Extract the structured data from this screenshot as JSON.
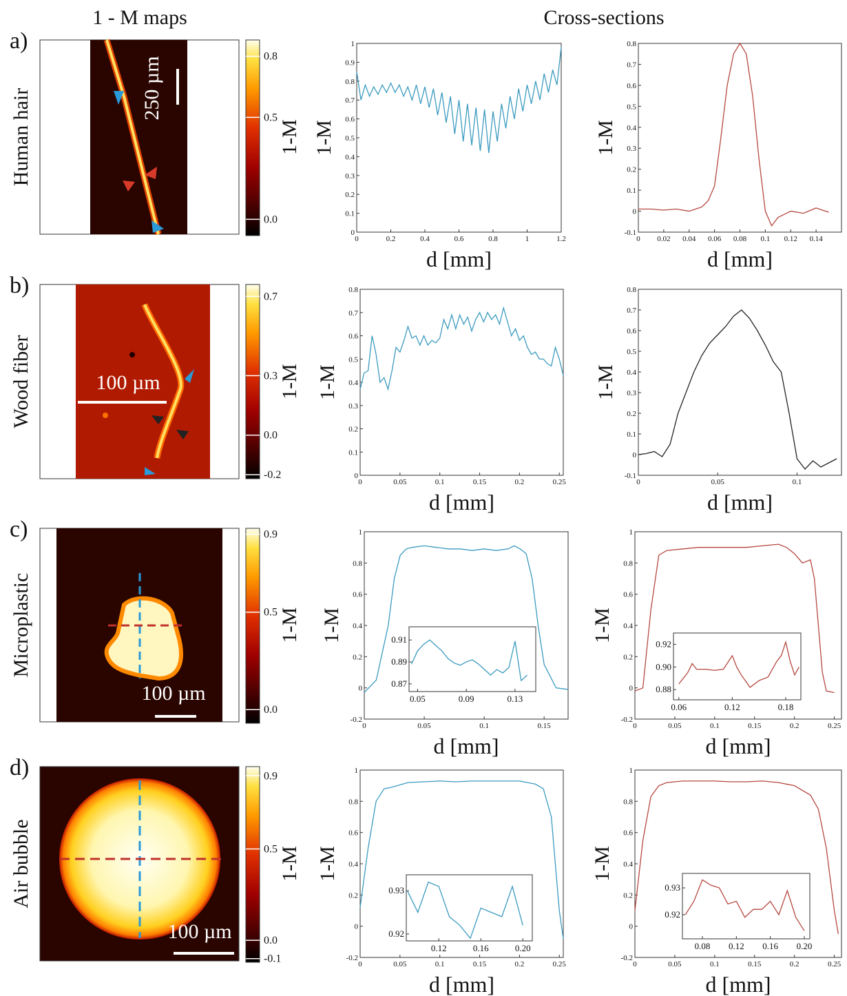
{
  "headers": {
    "maps": "1 - M maps",
    "cross_sections": "Cross-sections"
  },
  "panels": [
    {
      "letter": "a)",
      "name": "Human hair",
      "scale_label": "250 µm",
      "colorbar": {
        "label": "1-M",
        "clim": [
          -0.08,
          0.88
        ],
        "ticks": [
          0.8,
          0.5,
          {
            "value": 0,
            "label": "0.0"
          }
        ]
      }
    },
    {
      "letter": "b)",
      "name": "Wood fiber",
      "scale_label": "100 µm",
      "colorbar": {
        "label": "1-M",
        "clim": [
          -0.22,
          0.76
        ],
        "ticks": [
          0.7,
          0.3,
          {
            "value": 0,
            "label": "0.0"
          },
          -0.2
        ]
      }
    },
    {
      "letter": "c)",
      "name": "Microplastic",
      "scale_label": "100 µm",
      "colorbar": {
        "label": "1-M",
        "clim": [
          -0.07,
          0.93
        ],
        "ticks": [
          0.9,
          0.5,
          {
            "value": 0,
            "label": "0.0"
          }
        ]
      }
    },
    {
      "letter": "d)",
      "name": "Air bubble",
      "scale_label": "100 µm",
      "colorbar": {
        "label": "1-M",
        "clim": [
          -0.12,
          0.95
        ],
        "ticks": [
          0.9,
          0.5,
          {
            "value": 0,
            "label": "0.0"
          },
          -0.1
        ]
      }
    }
  ],
  "chart_data": [
    {
      "type": "line",
      "xlabel": "d [mm]",
      "ylabel": "1-M",
      "xlim": [
        0,
        1.2
      ],
      "ylim": [
        0,
        1
      ],
      "xticks": [
        0,
        0.2,
        0.4,
        0.6,
        0.8,
        1,
        1.2
      ],
      "yticks": [
        0,
        0.1,
        0.2,
        0.3,
        0.4,
        0.5,
        0.6,
        0.7,
        0.8,
        0.9,
        1
      ],
      "x": [
        0,
        0.025,
        0.05,
        0.075,
        0.1,
        0.125,
        0.15,
        0.175,
        0.2,
        0.225,
        0.25,
        0.275,
        0.3,
        0.325,
        0.35,
        0.375,
        0.4,
        0.425,
        0.45,
        0.475,
        0.5,
        0.525,
        0.55,
        0.575,
        0.6,
        0.625,
        0.65,
        0.675,
        0.7,
        0.725,
        0.75,
        0.775,
        0.8,
        0.825,
        0.85,
        0.875,
        0.9,
        0.925,
        0.95,
        0.975,
        1,
        1.025,
        1.05,
        1.075,
        1.1,
        1.125,
        1.15,
        1.175,
        1.2
      ],
      "series": [
        {
          "color": "#3a9abf",
          "values": [
            0.85,
            0.7,
            0.78,
            0.72,
            0.77,
            0.73,
            0.78,
            0.74,
            0.79,
            0.74,
            0.78,
            0.72,
            0.77,
            0.7,
            0.78,
            0.68,
            0.77,
            0.66,
            0.76,
            0.62,
            0.74,
            0.58,
            0.72,
            0.52,
            0.7,
            0.48,
            0.68,
            0.46,
            0.66,
            0.43,
            0.65,
            0.42,
            0.64,
            0.48,
            0.68,
            0.55,
            0.72,
            0.6,
            0.76,
            0.64,
            0.78,
            0.68,
            0.8,
            0.7,
            0.84,
            0.74,
            0.86,
            0.78,
            0.98
          ]
        }
      ]
    },
    {
      "type": "line",
      "xlabel": "d [mm]",
      "ylabel": "1-M",
      "xlim": [
        0,
        0.16
      ],
      "ylim": [
        -0.1,
        0.8
      ],
      "xticks": [
        0,
        0.02,
        0.04,
        0.06,
        0.08,
        0.1,
        0.12,
        0.14
      ],
      "yticks": [
        -0.1,
        0,
        0.1,
        0.2,
        0.3,
        0.4,
        0.5,
        0.6,
        0.7,
        0.8
      ],
      "x": [
        0,
        0.01,
        0.02,
        0.03,
        0.04,
        0.05,
        0.055,
        0.06,
        0.065,
        0.07,
        0.075,
        0.08,
        0.085,
        0.09,
        0.095,
        0.1,
        0.105,
        0.11,
        0.12,
        0.13,
        0.14,
        0.15
      ],
      "series": [
        {
          "color": "#b5473f",
          "values": [
            0.01,
            0.01,
            0.005,
            0.01,
            0,
            0.02,
            0.05,
            0.12,
            0.35,
            0.6,
            0.75,
            0.8,
            0.75,
            0.55,
            0.25,
            0,
            -0.07,
            -0.03,
            0,
            -0.01,
            0.015,
            -0.005
          ]
        }
      ]
    },
    {
      "type": "line",
      "xlabel": "d [mm]",
      "ylabel": "1-M",
      "xlim": [
        0,
        0.255
      ],
      "ylim": [
        0,
        0.8
      ],
      "xticks": [
        0,
        0.05,
        0.1,
        0.15,
        0.2,
        0.25
      ],
      "yticks": [
        0,
        0.1,
        0.2,
        0.3,
        0.4,
        0.5,
        0.6,
        0.7,
        0.8
      ],
      "x": [
        0,
        0.005,
        0.01,
        0.015,
        0.02,
        0.025,
        0.03,
        0.035,
        0.04,
        0.045,
        0.05,
        0.055,
        0.06,
        0.065,
        0.07,
        0.075,
        0.08,
        0.085,
        0.09,
        0.095,
        0.1,
        0.105,
        0.11,
        0.115,
        0.12,
        0.125,
        0.13,
        0.135,
        0.14,
        0.145,
        0.15,
        0.155,
        0.16,
        0.165,
        0.17,
        0.175,
        0.18,
        0.185,
        0.19,
        0.195,
        0.2,
        0.205,
        0.21,
        0.215,
        0.22,
        0.225,
        0.23,
        0.235,
        0.24,
        0.245,
        0.25,
        0.255
      ],
      "series": [
        {
          "color": "#3a9abf",
          "values": [
            0.37,
            0.44,
            0.45,
            0.6,
            0.52,
            0.4,
            0.42,
            0.37,
            0.45,
            0.55,
            0.53,
            0.58,
            0.64,
            0.59,
            0.6,
            0.56,
            0.6,
            0.56,
            0.58,
            0.57,
            0.59,
            0.67,
            0.63,
            0.69,
            0.63,
            0.69,
            0.65,
            0.68,
            0.62,
            0.67,
            0.7,
            0.66,
            0.7,
            0.67,
            0.69,
            0.65,
            0.72,
            0.66,
            0.6,
            0.63,
            0.58,
            0.6,
            0.55,
            0.52,
            0.53,
            0.5,
            0.5,
            0.48,
            0.47,
            0.55,
            0.5,
            0.43
          ]
        }
      ]
    },
    {
      "type": "line",
      "xlabel": "d [mm]",
      "ylabel": "1-M",
      "xlim": [
        0,
        0.128
      ],
      "ylim": [
        -0.1,
        0.8
      ],
      "xticks": [
        0,
        0.05,
        0.1
      ],
      "yticks": [
        -0.1,
        0,
        0.1,
        0.2,
        0.3,
        0.4,
        0.5,
        0.6,
        0.7,
        0.8
      ],
      "x": [
        0,
        0.005,
        0.01,
        0.015,
        0.02,
        0.025,
        0.03,
        0.035,
        0.04,
        0.045,
        0.05,
        0.055,
        0.06,
        0.065,
        0.07,
        0.075,
        0.08,
        0.085,
        0.09,
        0.095,
        0.1,
        0.105,
        0.11,
        0.115,
        0.12,
        0.125
      ],
      "series": [
        {
          "color": "#222222",
          "values": [
            0,
            0.005,
            0.015,
            -0.01,
            0.05,
            0.2,
            0.3,
            0.4,
            0.48,
            0.54,
            0.58,
            0.62,
            0.67,
            0.7,
            0.66,
            0.6,
            0.53,
            0.45,
            0.4,
            0.2,
            -0.02,
            -0.07,
            -0.03,
            -0.06,
            -0.04,
            -0.02
          ]
        }
      ]
    },
    {
      "type": "line",
      "xlabel": "d [mm]",
      "ylabel": "1-M",
      "xlim": [
        0,
        0.17
      ],
      "ylim": [
        -0.2,
        1
      ],
      "xticks": [
        0,
        0.05,
        0.1,
        0.15
      ],
      "yticks": [
        -0.2,
        0,
        0.2,
        0.4,
        0.6,
        0.8,
        1
      ],
      "x": [
        0,
        0.01,
        0.02,
        0.025,
        0.03,
        0.035,
        0.04,
        0.05,
        0.06,
        0.07,
        0.08,
        0.09,
        0.1,
        0.11,
        0.12,
        0.125,
        0.13,
        0.135,
        0.14,
        0.145,
        0.15,
        0.16,
        0.17
      ],
      "series": [
        {
          "color": "#3a9abf",
          "values": [
            -0.03,
            0.05,
            0.4,
            0.7,
            0.85,
            0.89,
            0.9,
            0.91,
            0.9,
            0.89,
            0.89,
            0.88,
            0.89,
            0.88,
            0.89,
            0.91,
            0.89,
            0.86,
            0.7,
            0.4,
            0.15,
            0,
            -0.01
          ]
        }
      ],
      "inset": {
        "xlim": [
          0.043,
          0.147
        ],
        "ylim": [
          0.863,
          0.922
        ],
        "xticks": [
          0.05,
          0.09,
          0.13
        ],
        "yticks": [
          0.87,
          0.89,
          0.91
        ],
        "x": [
          0.045,
          0.05,
          0.055,
          0.06,
          0.065,
          0.07,
          0.075,
          0.08,
          0.085,
          0.09,
          0.095,
          0.1,
          0.105,
          0.11,
          0.115,
          0.12,
          0.125,
          0.13,
          0.135,
          0.14
        ],
        "series": [
          {
            "color": "#3a9abf",
            "values": [
              0.888,
              0.9,
              0.906,
              0.91,
              0.905,
              0.9,
              0.893,
              0.889,
              0.887,
              0.89,
              0.892,
              0.888,
              0.883,
              0.878,
              0.883,
              0.88,
              0.885,
              0.909,
              0.873,
              0.878
            ]
          }
        ]
      }
    },
    {
      "type": "line",
      "xlabel": "d [mm]",
      "ylabel": "1-M",
      "xlim": [
        0,
        0.259
      ],
      "ylim": [
        -0.2,
        1
      ],
      "xticks": [
        0,
        0.05,
        0.1,
        0.15,
        0.2,
        0.25
      ],
      "yticks": [
        -0.2,
        0,
        0.2,
        0.4,
        0.6,
        0.8,
        1
      ],
      "x": [
        0,
        0.01,
        0.02,
        0.03,
        0.04,
        0.06,
        0.08,
        0.1,
        0.12,
        0.14,
        0.16,
        0.18,
        0.19,
        0.2,
        0.21,
        0.22,
        0.225,
        0.23,
        0.235,
        0.24,
        0.25
      ],
      "series": [
        {
          "color": "#b5473f",
          "values": [
            -0.02,
            0,
            0.5,
            0.85,
            0.88,
            0.89,
            0.9,
            0.9,
            0.9,
            0.9,
            0.91,
            0.92,
            0.9,
            0.86,
            0.8,
            0.82,
            0.7,
            0.4,
            0.1,
            -0.02,
            -0.03
          ]
        }
      ],
      "inset": {
        "xlim": [
          0.054,
          0.197
        ],
        "ylim": [
          0.871,
          0.93
        ],
        "xticks": [
          0.06,
          0.12,
          0.18
        ],
        "yticks": [
          0.88,
          {
            "value": 0.9,
            "label": "0.90"
          },
          0.92
        ],
        "x": [
          0.06,
          0.07,
          0.075,
          0.08,
          0.09,
          0.1,
          0.11,
          0.12,
          0.125,
          0.13,
          0.14,
          0.15,
          0.16,
          0.17,
          0.175,
          0.18,
          0.185,
          0.19,
          0.195
        ],
        "series": [
          {
            "color": "#b5473f",
            "values": [
              0.885,
              0.895,
              0.903,
              0.898,
              0.898,
              0.897,
              0.898,
              0.91,
              0.9,
              0.893,
              0.882,
              0.888,
              0.891,
              0.905,
              0.91,
              0.922,
              0.905,
              0.893,
              0.9
            ]
          }
        ]
      }
    },
    {
      "type": "line",
      "xlabel": "d [mm]",
      "ylabel": "1-M",
      "xlim": [
        0,
        0.255
      ],
      "ylim": [
        -0.2,
        1
      ],
      "xticks": [
        0,
        0.05,
        0.1,
        0.15,
        0.2,
        0.25
      ],
      "yticks": [
        -0.2,
        0,
        0.2,
        0.4,
        0.6,
        0.8,
        1
      ],
      "x": [
        0,
        0.01,
        0.02,
        0.03,
        0.04,
        0.06,
        0.08,
        0.1,
        0.12,
        0.14,
        0.16,
        0.18,
        0.2,
        0.22,
        0.23,
        0.24,
        0.245,
        0.25,
        0.255
      ],
      "series": [
        {
          "color": "#3a9abf",
          "values": [
            0.12,
            0.5,
            0.8,
            0.88,
            0.89,
            0.92,
            0.925,
            0.93,
            0.925,
            0.93,
            0.93,
            0.93,
            0.93,
            0.91,
            0.88,
            0.7,
            0.4,
            0.1,
            -0.08
          ]
        }
      ],
      "inset": {
        "xlim": [
          0.089,
          0.209
        ],
        "ylim": [
          0.9184,
          0.9337
        ],
        "xticks": [
          0.12,
          0.16,
          {
            "value": 0.2,
            "label": "0.20"
          }
        ],
        "yticks": [
          0.92,
          0.93
        ],
        "x": [
          0.09,
          0.1,
          0.11,
          0.12,
          0.13,
          0.14,
          0.15,
          0.16,
          0.17,
          0.18,
          0.19,
          0.2
        ],
        "series": [
          {
            "color": "#3a9abf",
            "values": [
              0.93,
              0.925,
              0.932,
              0.931,
              0.924,
              0.922,
              0.919,
              0.926,
              0.925,
              0.924,
              0.931,
              0.922
            ]
          }
        ]
      }
    },
    {
      "type": "line",
      "xlabel": "d [mm]",
      "ylabel": "1-M",
      "xlim": [
        0,
        0.259
      ],
      "ylim": [
        -0.2,
        1
      ],
      "xticks": [
        0,
        0.05,
        0.1,
        0.15,
        0.2,
        0.25
      ],
      "yticks": [
        -0.2,
        0,
        0.2,
        0.4,
        0.6,
        0.8,
        1
      ],
      "x": [
        0,
        0.01,
        0.02,
        0.03,
        0.04,
        0.06,
        0.08,
        0.1,
        0.12,
        0.14,
        0.16,
        0.18,
        0.2,
        0.22,
        0.23,
        0.24,
        0.245,
        0.25,
        0.255
      ],
      "series": [
        {
          "color": "#b5473f",
          "values": [
            0.1,
            0.55,
            0.83,
            0.9,
            0.92,
            0.93,
            0.93,
            0.93,
            0.925,
            0.925,
            0.93,
            0.92,
            0.9,
            0.84,
            0.75,
            0.5,
            0.3,
            0.1,
            -0.05
          ]
        }
      ],
      "inset": {
        "xlim": [
          0.0565,
          0.2065
        ],
        "ylim": [
          0.911,
          0.9354
        ],
        "xticks": [
          0.08,
          0.12,
          0.16,
          {
            "value": 0.2,
            "label": "0.20"
          }
        ],
        "yticks": [
          0.92,
          0.93
        ],
        "x": [
          0.06,
          0.07,
          0.08,
          0.09,
          0.1,
          0.11,
          0.12,
          0.13,
          0.14,
          0.15,
          0.16,
          0.17,
          0.18,
          0.19,
          0.2
        ],
        "series": [
          {
            "color": "#b5473f",
            "values": [
              0.92,
              0.925,
              0.933,
              0.931,
              0.93,
              0.924,
              0.925,
              0.919,
              0.922,
              0.922,
              0.925,
              0.92,
              0.929,
              0.919,
              0.914
            ]
          }
        ]
      }
    }
  ]
}
